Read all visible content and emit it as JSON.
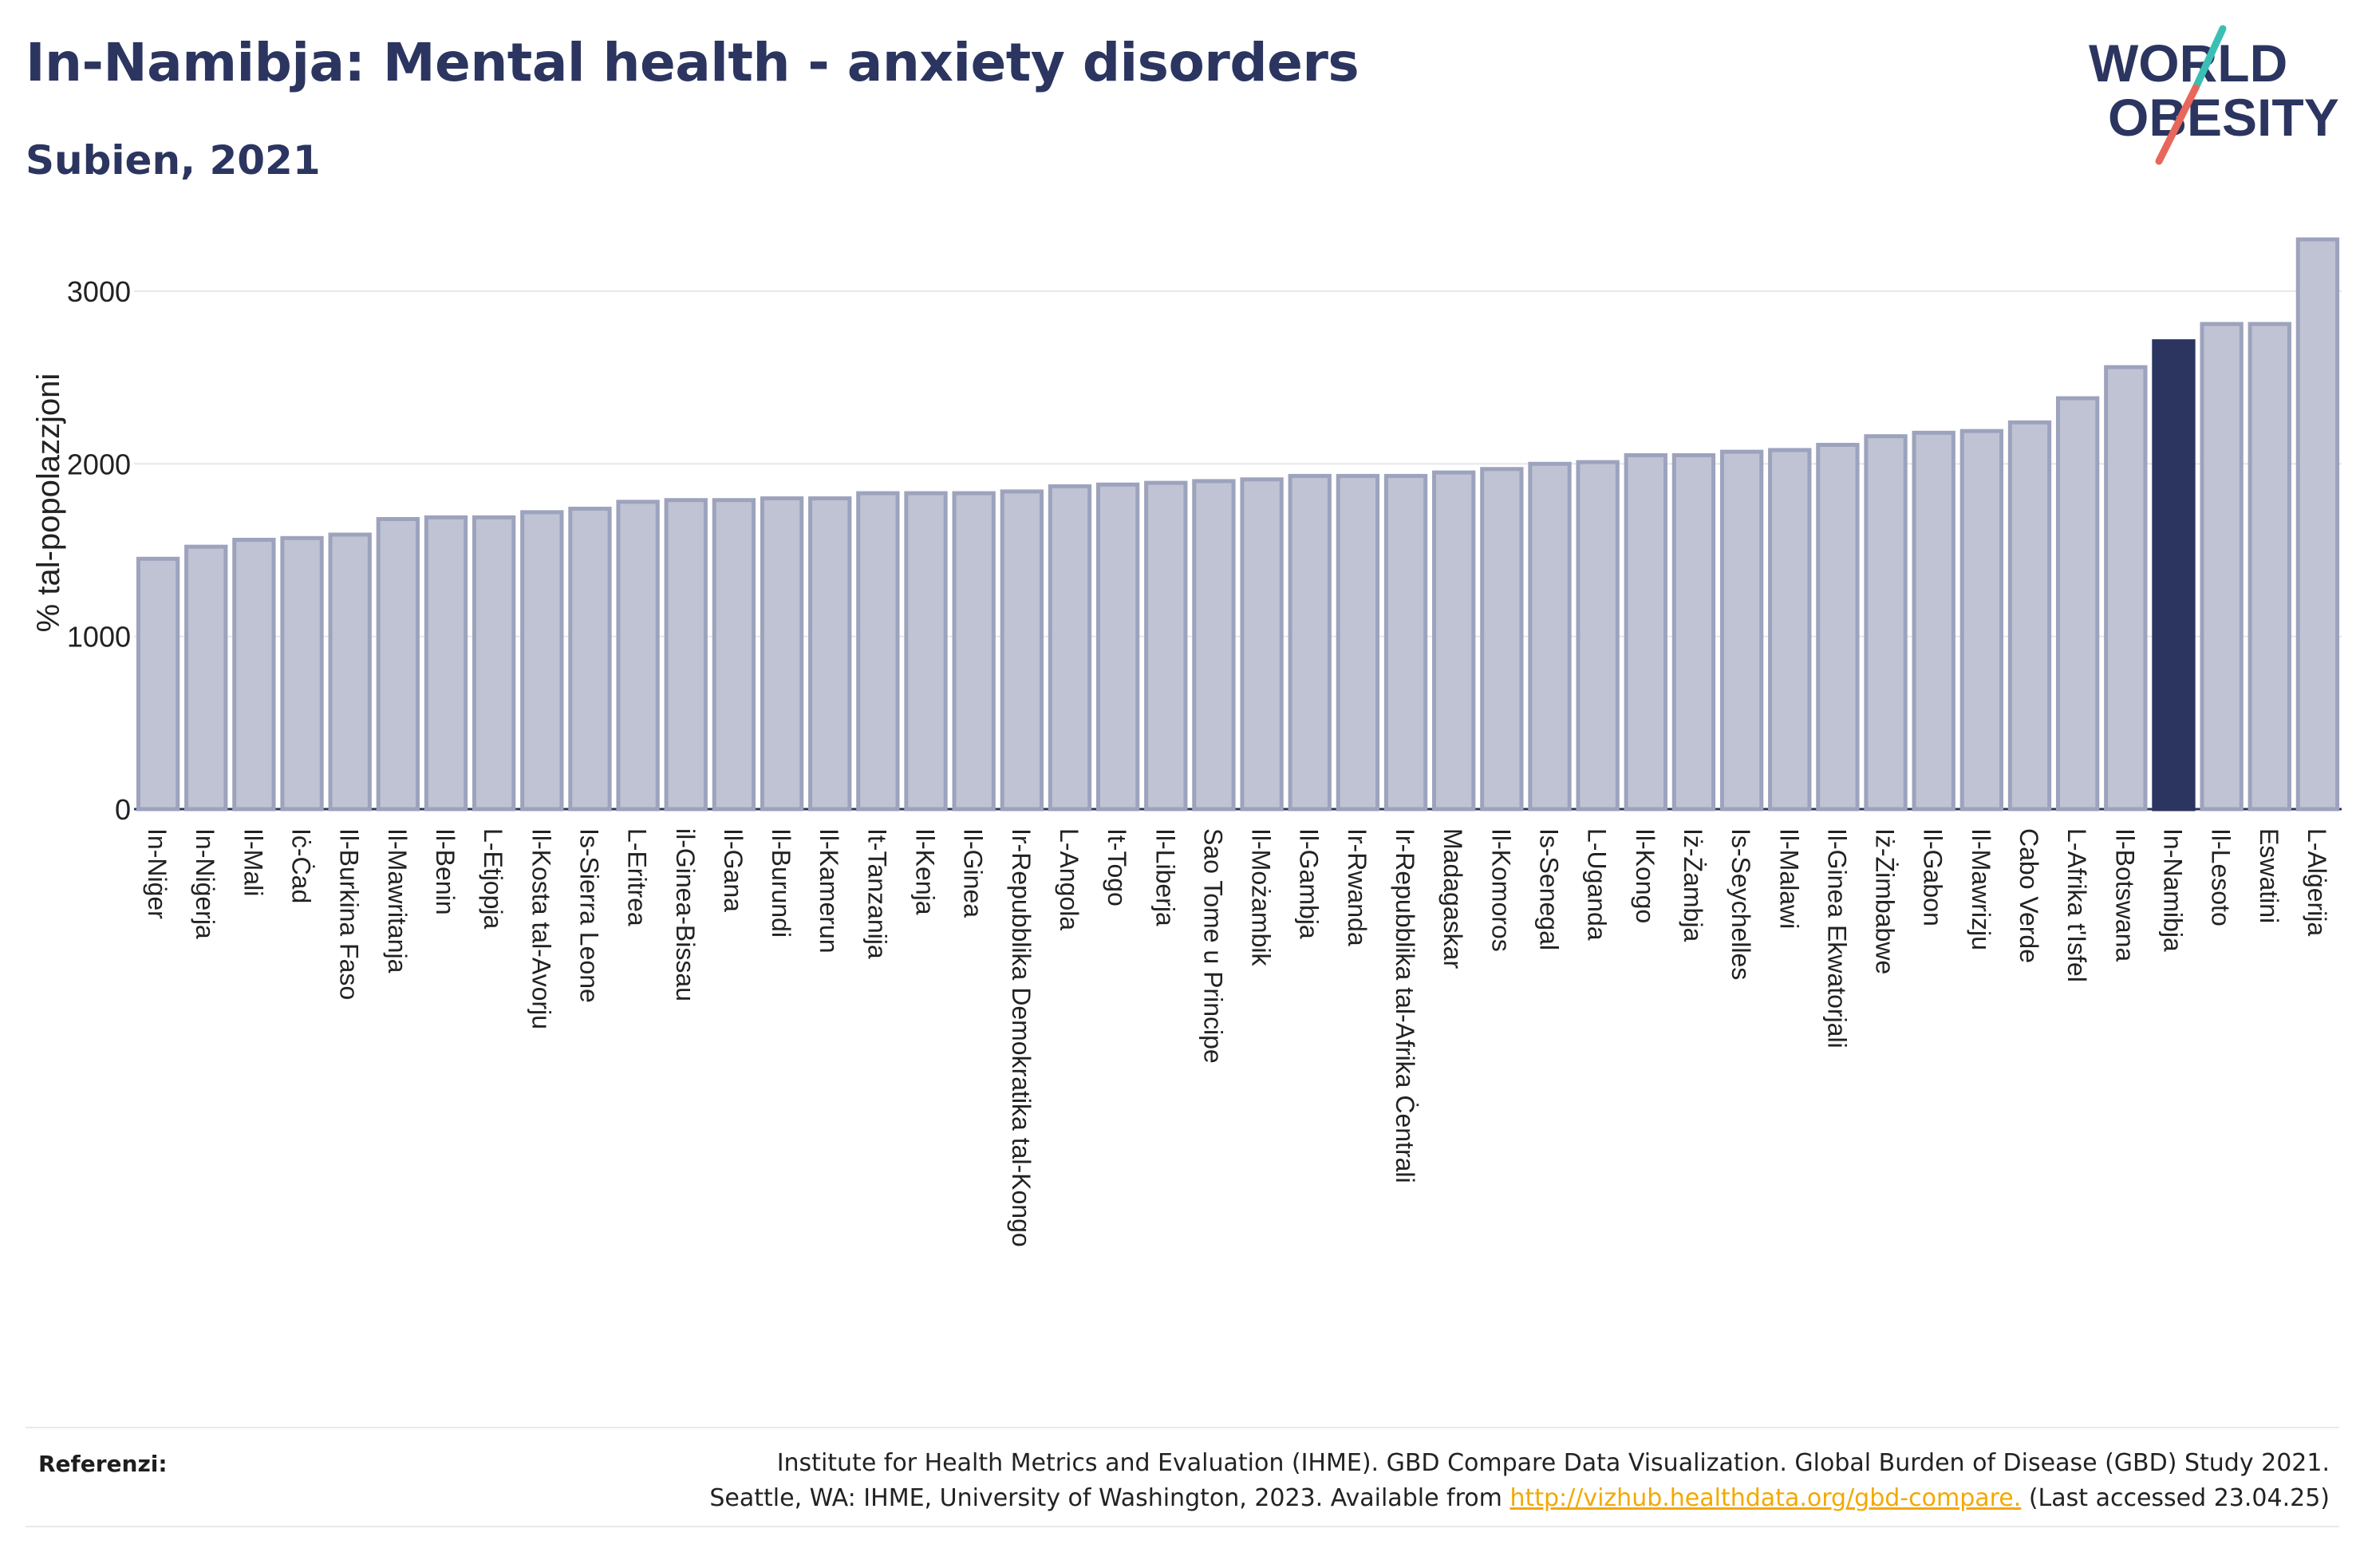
{
  "title": "In-Namibja: Mental health - anxiety disorders",
  "subtitle": "Subien, 2021",
  "logo": {
    "line1": "WORLD",
    "line2": "OBESITY"
  },
  "colors": {
    "bar": "#bfc3d3",
    "bar_border": "#9da3bd",
    "highlight": "#2b3560",
    "accent_teal": "#3bbfb4",
    "accent_coral": "#e8675a",
    "link": "#f2a900"
  },
  "chart_data": {
    "type": "bar",
    "ylabel": "% tal-popolazzjoni",
    "ylim": [
      0,
      3300
    ],
    "yticks": [
      0,
      1000,
      2000,
      3000
    ],
    "grid": true,
    "highlight": "In-Namibja",
    "categories": [
      "In-Niġer",
      "In-Niġerja",
      "Il-Mali",
      "Iċ-Ċad",
      "Il-Burkina Faso",
      "Il-Mawritanja",
      "Il-Benin",
      "L-Etjopja",
      "Il-Kosta tal-Avorju",
      "Is-Sierra Leone",
      "L-Eritrea",
      "il-Ginea-Bissau",
      "Il-Gana",
      "Il-Burundi",
      "Il-Kamerun",
      "It-Tanzanija",
      "Il-Kenja",
      "Il-Ginea",
      "Ir-Repubblika Demokratika tal-Kongo",
      "L-Angola",
      "It-Togo",
      "Il-Liberja",
      "Sao Tome u Principe",
      "Il-Możambik",
      "Il-Gambja",
      "Ir-Rwanda",
      "Ir-Repubblika tal-Afrika Ċentrali",
      "Madagaskar",
      "Il-Komoros",
      "Is-Senegal",
      "L-Uganda",
      "Il-Kongo",
      "Iż-Żambja",
      "Is-Seychelles",
      "Il-Malawi",
      "Il-Ginea Ekwatorjali",
      "Iż-Żimbabwe",
      "Il-Gabon",
      "Il-Mawrizju",
      "Cabo Verde",
      "L-Afrika t'Isfel",
      "Il-Botswana",
      "In-Namibja",
      "Il-Lesoto",
      "Eswatini",
      "L-Alġerija"
    ],
    "values": [
      1450,
      1520,
      1560,
      1570,
      1590,
      1680,
      1690,
      1690,
      1720,
      1740,
      1780,
      1790,
      1790,
      1800,
      1800,
      1830,
      1830,
      1830,
      1840,
      1870,
      1880,
      1890,
      1900,
      1910,
      1930,
      1930,
      1930,
      1950,
      1970,
      2000,
      2010,
      2050,
      2050,
      2070,
      2080,
      2110,
      2160,
      2180,
      2190,
      2240,
      2380,
      2560,
      2710,
      2810,
      2810,
      3300
    ]
  },
  "references": {
    "label": "Referenzi:",
    "line1": "Institute for Health Metrics and Evaluation (IHME). GBD Compare Data Visualization. Global Burden of Disease (GBD) Study 2021.",
    "line2_before": "Seattle, WA: IHME, University of Washington, 2023. Available from",
    "link": "http://vizhub.healthdata.org/gbd-compare.",
    "line2_after": "(Last accessed 23.04.25)"
  }
}
